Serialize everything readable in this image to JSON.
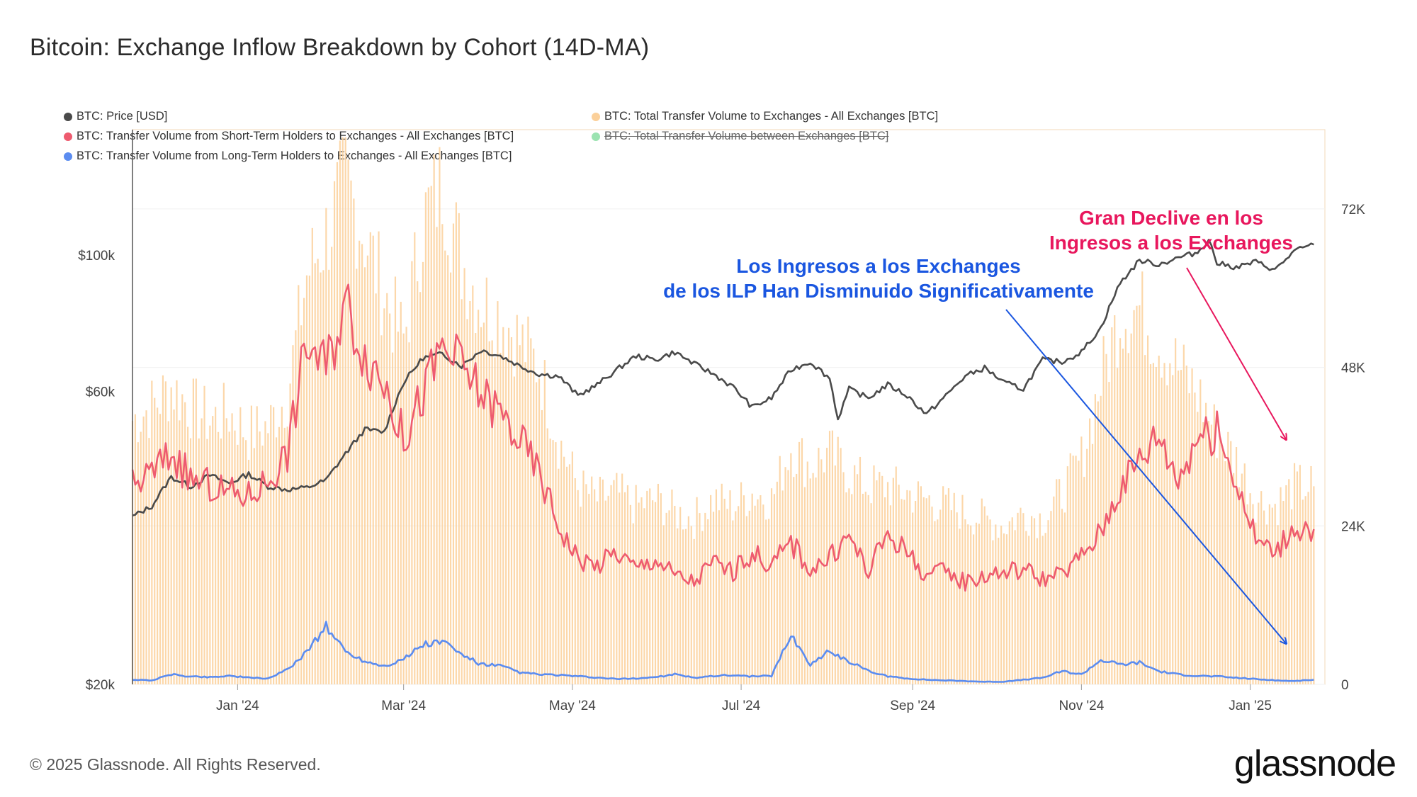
{
  "title": "Bitcoin: Exchange Inflow Breakdown by Cohort (14D-MA)",
  "footer": "© 2025 Glassnode. All Rights Reserved.",
  "brand": "glassnode",
  "legend": [
    {
      "label": "BTC: Price [USD]",
      "color": "#4a4a4a",
      "struck": false
    },
    {
      "label": "BTC: Total Transfer Volume to Exchanges - All Exchanges [BTC]",
      "color": "#fbd09a",
      "struck": false
    },
    {
      "label": "BTC: Transfer Volume from Short-Term Holders to Exchanges - All Exchanges [BTC]",
      "color": "#ee5b6f",
      "struck": false
    },
    {
      "label": "BTC: Total Transfer Volume between Exchanges [BTC]",
      "color": "#9be3b1",
      "struck": true
    },
    {
      "label": "BTC: Transfer Volume from Long-Term Holders to Exchanges - All Exchanges [BTC]",
      "color": "#5b8cf0",
      "struck": false
    }
  ],
  "annotations": {
    "lth_line1": "Los Ingresos a los Exchanges",
    "lth_line2": "de los ILP Han Disminuido Significativamente",
    "total_line1": "Gran Declive en los",
    "total_line2": "Ingresos a los Exchanges",
    "lth_color": "#1a56e0",
    "total_color": "#e8175d"
  },
  "chart_data": {
    "type": "line",
    "x_ticks": [
      "Jan '24",
      "Mar '24",
      "May '24",
      "Jul '24",
      "Sep '24",
      "Nov '24",
      "Jan '25"
    ],
    "x_tick_dates": [
      "2024-01-01",
      "2024-03-01",
      "2024-05-01",
      "2024-07-01",
      "2024-09-01",
      "2024-11-01",
      "2025-01-01"
    ],
    "x_range": [
      "2023-11-24",
      "2025-01-28"
    ],
    "y_left": {
      "scale": "log",
      "ticks": [
        "$20k",
        "$60k",
        "$100k"
      ],
      "tick_values": [
        20000,
        60000,
        100000
      ],
      "range": [
        20000,
        160000
      ]
    },
    "y_right": {
      "ticks": [
        "0",
        "24K",
        "48K",
        "72K"
      ],
      "tick_values": [
        0,
        24000,
        48000,
        72000
      ],
      "range": [
        0,
        84000
      ]
    },
    "series": [
      {
        "name": "BTC: Price [USD]",
        "axis": "left",
        "color": "#4a4a4a",
        "kind": "line",
        "x": [
          "2023-11-24",
          "2023-12-01",
          "2023-12-08",
          "2023-12-15",
          "2023-12-22",
          "2023-12-29",
          "2024-01-05",
          "2024-01-12",
          "2024-01-19",
          "2024-01-26",
          "2024-02-02",
          "2024-02-09",
          "2024-02-16",
          "2024-02-23",
          "2024-03-01",
          "2024-03-08",
          "2024-03-15",
          "2024-03-22",
          "2024-03-29",
          "2024-04-05",
          "2024-04-12",
          "2024-04-19",
          "2024-04-26",
          "2024-05-03",
          "2024-05-10",
          "2024-05-17",
          "2024-05-24",
          "2024-05-31",
          "2024-06-07",
          "2024-06-14",
          "2024-06-21",
          "2024-06-28",
          "2024-07-05",
          "2024-07-12",
          "2024-07-19",
          "2024-07-26",
          "2024-08-02",
          "2024-08-05",
          "2024-08-09",
          "2024-08-16",
          "2024-08-23",
          "2024-08-30",
          "2024-09-06",
          "2024-09-13",
          "2024-09-20",
          "2024-09-27",
          "2024-10-04",
          "2024-10-11",
          "2024-10-18",
          "2024-10-25",
          "2024-11-01",
          "2024-11-08",
          "2024-11-15",
          "2024-11-22",
          "2024-11-29",
          "2024-12-06",
          "2024-12-13",
          "2024-12-17",
          "2024-12-20",
          "2024-12-27",
          "2025-01-03",
          "2025-01-10",
          "2025-01-17",
          "2025-01-24"
        ],
        "values": [
          37500,
          39000,
          43500,
          42000,
          43800,
          42500,
          44000,
          42000,
          41500,
          41800,
          43000,
          47500,
          52000,
          51500,
          62000,
          68000,
          69000,
          66000,
          70000,
          68500,
          66000,
          64000,
          63500,
          59000,
          61500,
          65000,
          68500,
          67500,
          69500,
          66500,
          64000,
          61000,
          56500,
          58500,
          65000,
          67000,
          63000,
          54000,
          60500,
          58500,
          61500,
          59000,
          55000,
          59000,
          63500,
          65500,
          62000,
          60500,
          67500,
          67000,
          69500,
          76000,
          90000,
          98000,
          96500,
          99000,
          101000,
          106000,
          97000,
          95500,
          97500,
          94500,
          101500,
          104000
        ]
      },
      {
        "name": "BTC: Transfer Volume from Short-Term Holders to Exchanges - All Exchanges [BTC]",
        "axis": "right",
        "color": "#ee5b6f",
        "kind": "line",
        "x": [
          "2023-11-24",
          "2023-12-01",
          "2023-12-08",
          "2023-12-15",
          "2023-12-22",
          "2023-12-29",
          "2024-01-05",
          "2024-01-12",
          "2024-01-19",
          "2024-01-26",
          "2024-02-02",
          "2024-02-09",
          "2024-02-16",
          "2024-02-23",
          "2024-03-01",
          "2024-03-08",
          "2024-03-15",
          "2024-03-22",
          "2024-03-29",
          "2024-04-05",
          "2024-04-12",
          "2024-04-19",
          "2024-04-26",
          "2024-05-03",
          "2024-05-10",
          "2024-05-17",
          "2024-05-24",
          "2024-05-31",
          "2024-06-07",
          "2024-06-14",
          "2024-06-21",
          "2024-06-28",
          "2024-07-05",
          "2024-07-12",
          "2024-07-19",
          "2024-07-26",
          "2024-08-02",
          "2024-08-09",
          "2024-08-16",
          "2024-08-23",
          "2024-08-30",
          "2024-09-06",
          "2024-09-13",
          "2024-09-20",
          "2024-09-27",
          "2024-10-04",
          "2024-10-11",
          "2024-10-18",
          "2024-10-25",
          "2024-11-01",
          "2024-11-08",
          "2024-11-15",
          "2024-11-22",
          "2024-11-29",
          "2024-12-06",
          "2024-12-13",
          "2024-12-20",
          "2024-12-27",
          "2025-01-03",
          "2025-01-10",
          "2025-01-17",
          "2025-01-24"
        ],
        "values": [
          30000,
          32000,
          35000,
          31000,
          30000,
          29000,
          28500,
          31000,
          35000,
          52000,
          48000,
          58000,
          50000,
          46000,
          37000,
          44000,
          51000,
          48000,
          44000,
          41000,
          37000,
          32000,
          24000,
          19000,
          18000,
          20000,
          17500,
          19000,
          16500,
          15500,
          18500,
          17000,
          20000,
          18000,
          21500,
          17500,
          19000,
          22500,
          17000,
          23000,
          20000,
          16500,
          17000,
          15500,
          16500,
          17000,
          17500,
          16000,
          16500,
          19500,
          23000,
          30000,
          34000,
          38000,
          31000,
          38000,
          38000,
          31000,
          22000,
          20000,
          24000,
          23500
        ]
      },
      {
        "name": "BTC: Transfer Volume from Long-Term Holders to Exchanges - All Exchanges [BTC]",
        "axis": "right",
        "color": "#5b8cf0",
        "kind": "line",
        "x": [
          "2023-11-24",
          "2023-12-01",
          "2023-12-08",
          "2023-12-15",
          "2023-12-22",
          "2023-12-29",
          "2024-01-05",
          "2024-01-12",
          "2024-01-19",
          "2024-01-26",
          "2024-02-02",
          "2024-02-09",
          "2024-02-16",
          "2024-02-23",
          "2024-03-01",
          "2024-03-08",
          "2024-03-15",
          "2024-03-22",
          "2024-03-29",
          "2024-04-05",
          "2024-04-12",
          "2024-04-19",
          "2024-04-26",
          "2024-05-03",
          "2024-05-10",
          "2024-05-17",
          "2024-05-24",
          "2024-05-31",
          "2024-06-07",
          "2024-06-14",
          "2024-06-21",
          "2024-06-28",
          "2024-07-05",
          "2024-07-12",
          "2024-07-19",
          "2024-07-26",
          "2024-08-02",
          "2024-08-09",
          "2024-08-16",
          "2024-08-23",
          "2024-08-30",
          "2024-09-06",
          "2024-09-13",
          "2024-09-20",
          "2024-09-27",
          "2024-10-04",
          "2024-10-11",
          "2024-10-18",
          "2024-10-25",
          "2024-11-01",
          "2024-11-08",
          "2024-11-15",
          "2024-11-22",
          "2024-11-29",
          "2024-12-06",
          "2024-12-13",
          "2024-12-20",
          "2024-12-27",
          "2025-01-03",
          "2025-01-10",
          "2025-01-17",
          "2025-01-24"
        ],
        "values": [
          700,
          600,
          1500,
          1200,
          1100,
          1300,
          1000,
          900,
          2200,
          5000,
          8800,
          5000,
          3500,
          2800,
          3800,
          6000,
          6500,
          4500,
          3000,
          2800,
          1800,
          1500,
          1400,
          1200,
          1000,
          800,
          900,
          1100,
          1500,
          1000,
          1300,
          1400,
          1200,
          1300,
          7500,
          3000,
          5000,
          3500,
          2000,
          1200,
          900,
          700,
          600,
          500,
          400,
          400,
          700,
          1000,
          2000,
          1500,
          3700,
          3000,
          3300,
          2000,
          1500,
          1300,
          1200,
          1000,
          800,
          600,
          500,
          700
        ]
      },
      {
        "name": "BTC: Total Transfer Volume to Exchanges - All Exchanges [BTC]",
        "axis": "right",
        "color": "#fbd09a",
        "kind": "bar",
        "x": [
          "2023-11-24",
          "2023-12-01",
          "2023-12-08",
          "2023-12-15",
          "2023-12-22",
          "2023-12-29",
          "2024-01-05",
          "2024-01-12",
          "2024-01-19",
          "2024-01-26",
          "2024-02-02",
          "2024-02-09",
          "2024-02-16",
          "2024-02-23",
          "2024-03-01",
          "2024-03-08",
          "2024-03-15",
          "2024-03-22",
          "2024-03-29",
          "2024-04-05",
          "2024-04-12",
          "2024-04-19",
          "2024-04-26",
          "2024-05-03",
          "2024-05-10",
          "2024-05-17",
          "2024-05-24",
          "2024-05-31",
          "2024-06-07",
          "2024-06-14",
          "2024-06-21",
          "2024-06-28",
          "2024-07-05",
          "2024-07-12",
          "2024-07-19",
          "2024-07-26",
          "2024-08-02",
          "2024-08-09",
          "2024-08-16",
          "2024-08-23",
          "2024-08-30",
          "2024-09-06",
          "2024-09-13",
          "2024-09-20",
          "2024-09-27",
          "2024-10-04",
          "2024-10-11",
          "2024-10-18",
          "2024-10-25",
          "2024-11-01",
          "2024-11-08",
          "2024-11-15",
          "2024-11-22",
          "2024-11-29",
          "2024-12-06",
          "2024-12-13",
          "2024-12-20",
          "2024-12-27",
          "2025-01-03",
          "2025-01-10",
          "2025-01-17",
          "2025-01-24"
        ],
        "values": [
          40000,
          42000,
          45000,
          42000,
          40000,
          41000,
          38000,
          39000,
          44000,
          62000,
          68000,
          76000,
          68000,
          59000,
          52000,
          70000,
          76000,
          64000,
          58000,
          56000,
          52000,
          48000,
          37000,
          30000,
          28000,
          29000,
          27000,
          28000,
          26000,
          25000,
          28000,
          27000,
          29000,
          28000,
          36000,
          33000,
          35000,
          32000,
          30000,
          30000,
          29000,
          28000,
          27000,
          26000,
          25000,
          24000,
          26000,
          25000,
          29000,
          34000,
          46000,
          56000,
          57000,
          52000,
          48000,
          44000,
          38000,
          34000,
          28000,
          27000,
          30000,
          30000
        ]
      }
    ]
  }
}
